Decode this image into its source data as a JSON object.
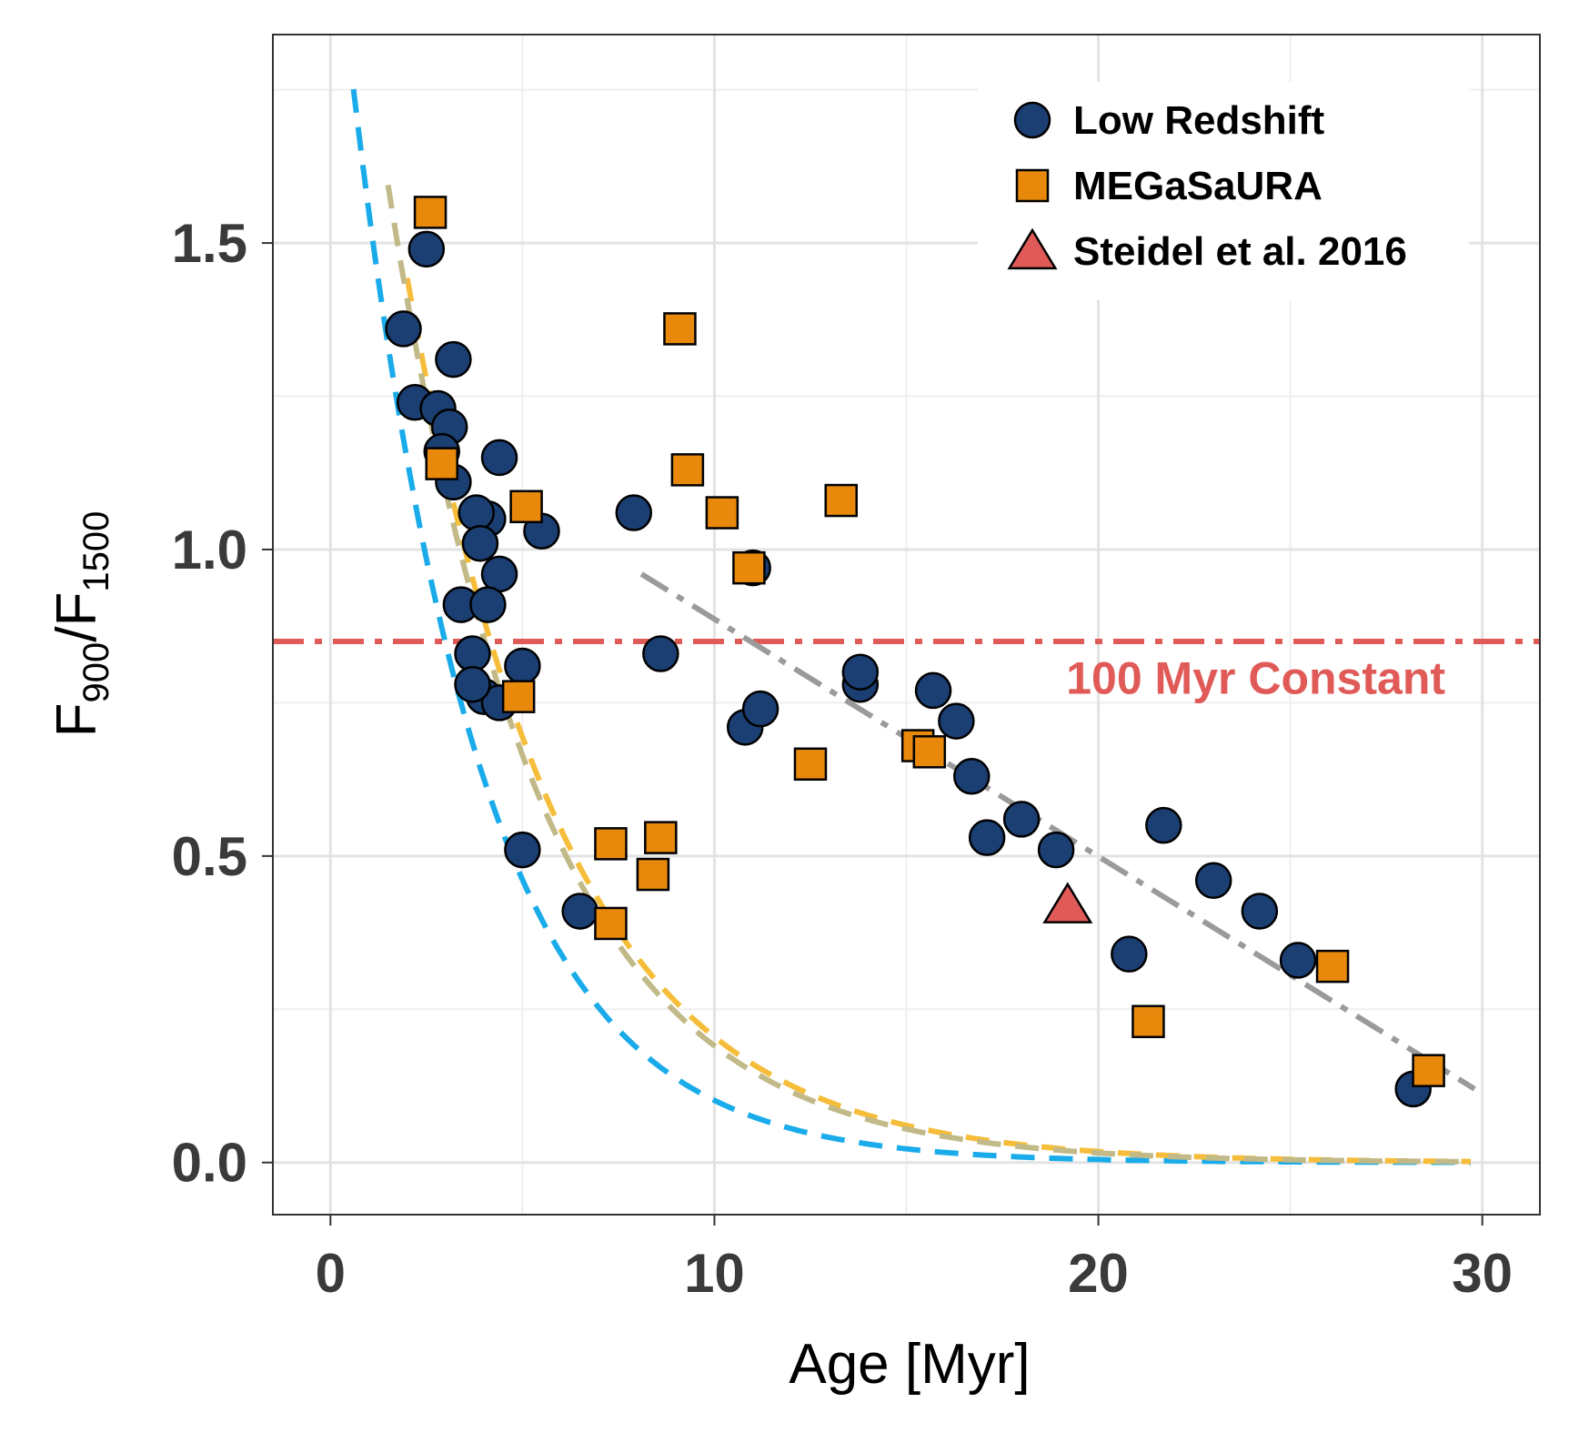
{
  "chart_data": {
    "type": "scatter",
    "xlabel": "Age [Myr]",
    "ylabel": {
      "main": "F",
      "num_sub": "900",
      "slash": "/",
      "den": "F",
      "den_sub": "1500"
    },
    "xlim": [
      -1.5,
      31.5
    ],
    "ylim": [
      -0.085,
      1.84
    ],
    "x_ticks": [
      0,
      10,
      20,
      30
    ],
    "x_tick_labels": [
      "0",
      "10",
      "20",
      "30"
    ],
    "y_ticks": [
      0.0,
      0.5,
      1.0,
      1.5
    ],
    "y_tick_labels": [
      "0.0",
      "0.5",
      "1.0",
      "1.5"
    ],
    "x_minor_ticks": [
      5,
      15,
      25
    ],
    "y_minor_ticks": [
      0.25,
      0.75,
      1.25,
      1.75
    ],
    "grid": true,
    "legend_position": "top-right",
    "legend": [
      {
        "label": "Low Redshift",
        "marker": "circle",
        "color": "#1b3f73"
      },
      {
        "label": "MEGaSaURA",
        "marker": "square",
        "color": "#e8890c"
      },
      {
        "label": "Steidel et al. 2016",
        "marker": "triangle",
        "color": "#e05a58"
      }
    ],
    "series": [
      {
        "name": "Low Redshift",
        "marker": "circle",
        "color": "#1b3f73",
        "points": [
          [
            1.9,
            1.36
          ],
          [
            2.5,
            1.49
          ],
          [
            2.2,
            1.24
          ],
          [
            3.2,
            1.31
          ],
          [
            2.8,
            1.23
          ],
          [
            3.1,
            1.2
          ],
          [
            2.9,
            1.16
          ],
          [
            3.2,
            1.11
          ],
          [
            4.4,
            1.15
          ],
          [
            4.1,
            1.05
          ],
          [
            3.8,
            1.06
          ],
          [
            3.9,
            1.01
          ],
          [
            5.5,
            1.03
          ],
          [
            4.4,
            0.96
          ],
          [
            3.4,
            0.91
          ],
          [
            4.1,
            0.91
          ],
          [
            3.7,
            0.83
          ],
          [
            4.0,
            0.76
          ],
          [
            4.4,
            0.75
          ],
          [
            3.7,
            0.78
          ],
          [
            5.0,
            0.81
          ],
          [
            5.0,
            0.51
          ],
          [
            6.5,
            0.41
          ],
          [
            7.9,
            1.06
          ],
          [
            8.6,
            0.83
          ],
          [
            11.0,
            0.97
          ],
          [
            10.8,
            0.71
          ],
          [
            11.2,
            0.74
          ],
          [
            13.8,
            0.78
          ],
          [
            13.8,
            0.8
          ],
          [
            15.7,
            0.77
          ],
          [
            16.3,
            0.72
          ],
          [
            16.7,
            0.63
          ],
          [
            17.1,
            0.53
          ],
          [
            18.0,
            0.56
          ],
          [
            18.9,
            0.51
          ],
          [
            20.8,
            0.34
          ],
          [
            21.7,
            0.55
          ],
          [
            23.0,
            0.46
          ],
          [
            24.2,
            0.41
          ],
          [
            25.2,
            0.33
          ],
          [
            28.2,
            0.12
          ]
        ]
      },
      {
        "name": "MEGaSaURA",
        "marker": "square",
        "color": "#e8890c",
        "points": [
          [
            2.6,
            1.55
          ],
          [
            2.9,
            1.14
          ],
          [
            5.1,
            1.07
          ],
          [
            4.9,
            0.76
          ],
          [
            9.1,
            1.36
          ],
          [
            9.3,
            1.13
          ],
          [
            10.2,
            1.06
          ],
          [
            10.9,
            0.97
          ],
          [
            13.3,
            1.08
          ],
          [
            7.3,
            0.52
          ],
          [
            7.3,
            0.39
          ],
          [
            8.6,
            0.53
          ],
          [
            8.4,
            0.47
          ],
          [
            12.5,
            0.65
          ],
          [
            15.3,
            0.68
          ],
          [
            15.6,
            0.67
          ],
          [
            21.3,
            0.23
          ],
          [
            26.1,
            0.32
          ],
          [
            28.6,
            0.15
          ]
        ]
      },
      {
        "name": "Steidel et al. 2016",
        "marker": "triangle",
        "color": "#e05a58",
        "points": [
          [
            19.2,
            0.42
          ]
        ]
      }
    ],
    "model_curves": [
      {
        "name": "model-curve-blue",
        "color": "#1aabea",
        "A": 2.1,
        "tau": 3.3,
        "x_start": 0.6,
        "x_end": 29.7
      },
      {
        "name": "model-curve-yellow",
        "color": "#f6bd3a",
        "A": 2.35,
        "tau": 4.1,
        "x_start": 2.0,
        "x_end": 29.7
      },
      {
        "name": "model-curve-khaki",
        "color": "#c1b988",
        "A": 2.32,
        "tau": 4.0,
        "x_start": 1.5,
        "x_end": 29.7
      }
    ],
    "trend_line": {
      "name": "linear-fit-line",
      "color": "#9a9a9a",
      "x": [
        8.1,
        29.8
      ],
      "y": [
        0.96,
        0.12
      ]
    },
    "reference_line": {
      "name": "100-myr-constant-line",
      "color": "#e05a58",
      "y": 0.85
    },
    "annotation": {
      "text": "100 Myr Constant",
      "x": 24.1,
      "y": 0.79,
      "color": "#e05a58"
    }
  }
}
